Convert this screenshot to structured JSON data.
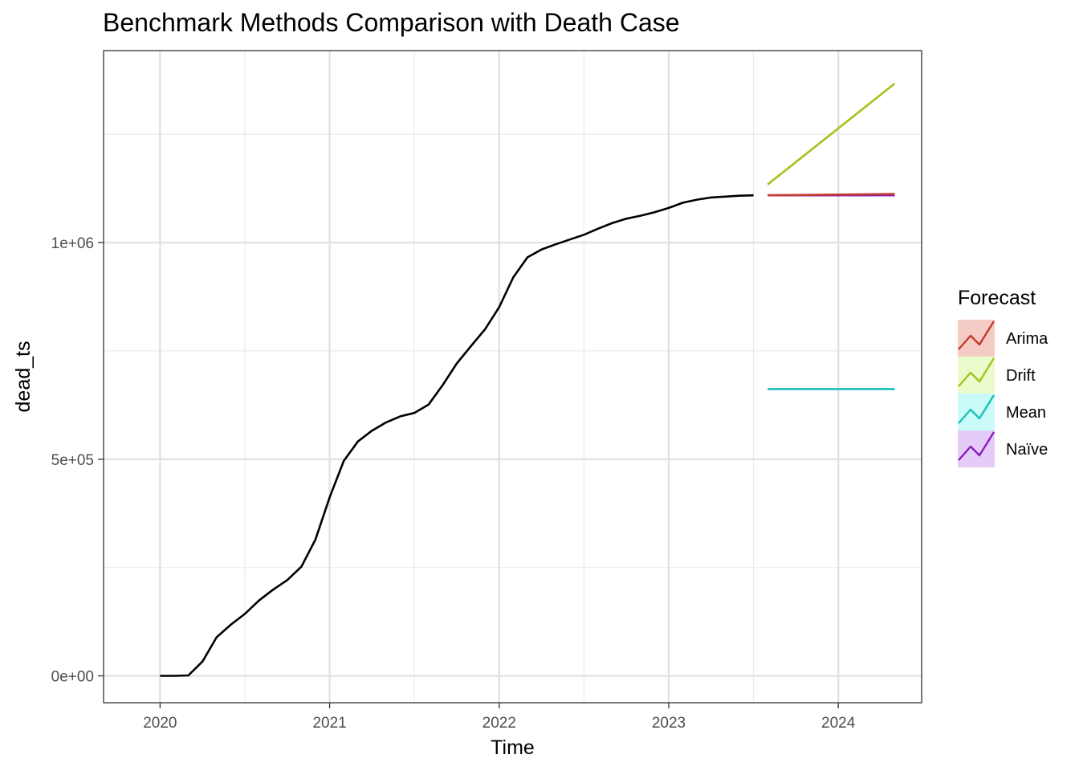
{
  "chart_data": {
    "type": "line",
    "title": "Benchmark Methods Comparison with Death Case",
    "xlabel": "Time",
    "ylabel": "dead_ts",
    "xlim": [
      2019.6667,
      2024.4917
    ],
    "ylim": [
      -62000,
      1443000
    ],
    "x_ticks": [
      2020,
      2021,
      2022,
      2023,
      2024
    ],
    "x_tick_labels": [
      "2020",
      "2021",
      "2022",
      "2023",
      "2024"
    ],
    "y_ticks": [
      0,
      500000,
      1000000
    ],
    "y_tick_labels": [
      "0e+00",
      "5e+05",
      "1e+06"
    ],
    "grid": true,
    "legend": {
      "title": "Forecast",
      "position": "right"
    },
    "observed": {
      "color": "#000000",
      "x": [
        2020.0,
        2020.0833,
        2020.1667,
        2020.25,
        2020.3333,
        2020.4167,
        2020.5,
        2020.5833,
        2020.6667,
        2020.75,
        2020.8333,
        2020.9167,
        2021.0,
        2021.0833,
        2021.1667,
        2021.25,
        2021.3333,
        2021.4167,
        2021.5,
        2021.5833,
        2021.6667,
        2021.75,
        2021.8333,
        2021.9167,
        2022.0,
        2022.0833,
        2022.1667,
        2022.25,
        2022.3333,
        2022.4167,
        2022.5,
        2022.5833,
        2022.6667,
        2022.75,
        2022.8333,
        2022.9167,
        2023.0,
        2023.0833,
        2023.1667,
        2023.25,
        2023.3333,
        2023.4167,
        2023.5
      ],
      "y": [
        0,
        0,
        1000,
        33000,
        89000,
        118000,
        143000,
        174000,
        199000,
        221000,
        252000,
        315000,
        412000,
        496000,
        541000,
        566000,
        585000,
        599000,
        607000,
        626000,
        671000,
        721000,
        761000,
        800000,
        851000,
        920000,
        966000,
        984000,
        996000,
        1007000,
        1018000,
        1032000,
        1045000,
        1055000,
        1062000,
        1070000,
        1080000,
        1092000,
        1099000,
        1104000,
        1106000,
        1108000,
        1109000
      ]
    },
    "series": [
      {
        "name": "Arima",
        "color": "#c33b2e",
        "x": [
          2023.5833,
          2024.3333
        ],
        "y": [
          1109000,
          1112000
        ]
      },
      {
        "name": "Drift",
        "color": "#a3c31c",
        "x": [
          2023.5833,
          2024.3333
        ],
        "y": [
          1134000,
          1367000
        ]
      },
      {
        "name": "Mean",
        "color": "#17c1b8",
        "x": [
          2023.5833,
          2024.3333
        ],
        "y": [
          662000,
          662000
        ]
      },
      {
        "name": "Naïve",
        "color": "#8a1cc1",
        "x": [
          2023.5833,
          2024.3333
        ],
        "y": [
          1109000,
          1109000
        ]
      }
    ],
    "legend_fill_colors": [
      "#f5cbc6",
      "#eafbcc",
      "#cafbf9",
      "#e5ccf8"
    ]
  }
}
